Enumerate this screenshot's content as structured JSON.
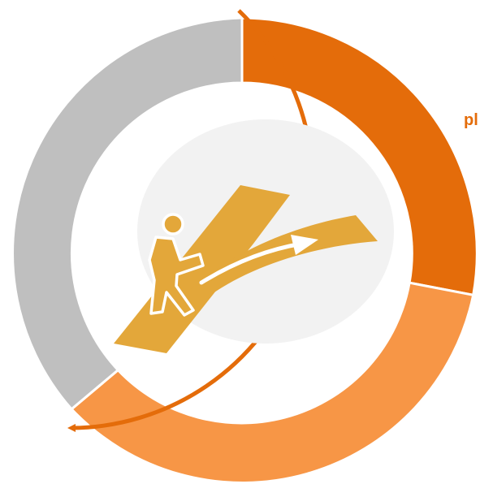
{
  "diagram": {
    "edge_label": "pl",
    "center_icon": "person-walking-on-forked-path-icon",
    "segments": [
      {
        "name": "dark-orange",
        "color": "#E46C0A"
      },
      {
        "name": "light-orange",
        "color": "#F79646"
      },
      {
        "name": "gray",
        "color": "#BFBFBF"
      }
    ],
    "colors": {
      "arrow": "#E46C0A",
      "icon": "#E3A73A",
      "center_fill": "#F2F2F2",
      "label": "#E46C0A"
    }
  }
}
